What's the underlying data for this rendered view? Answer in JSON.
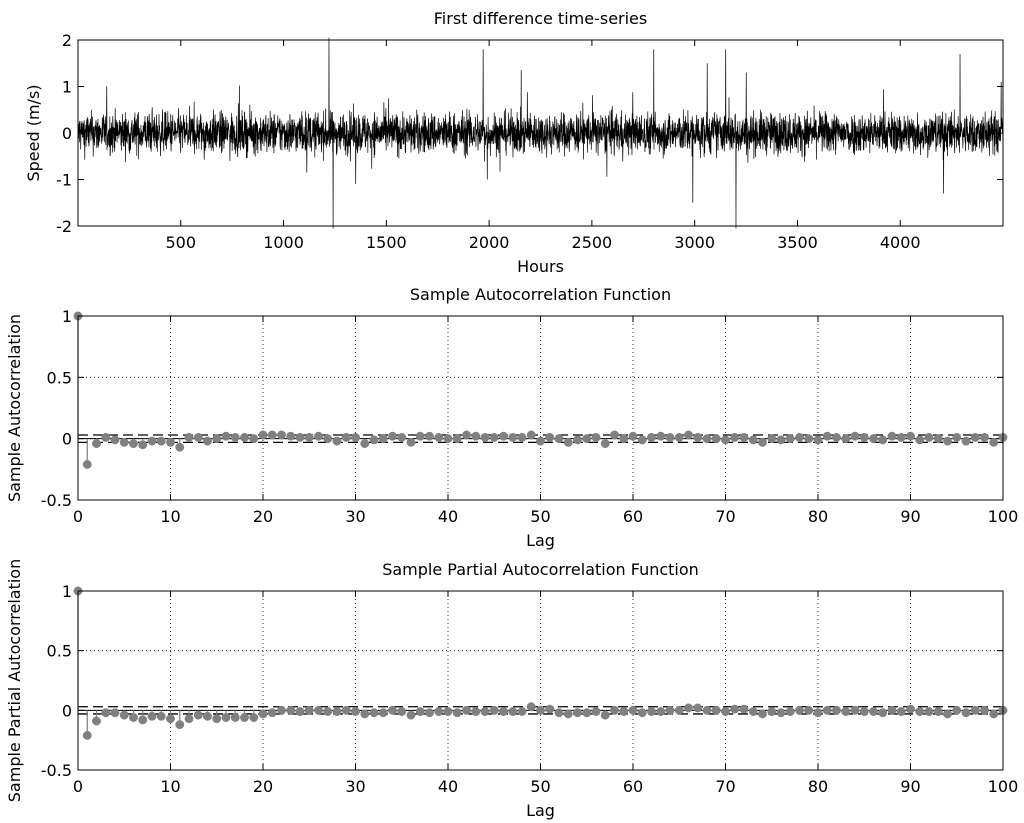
{
  "chart_data": [
    {
      "type": "line",
      "title": "First difference time-series",
      "xlabel": "Hours",
      "ylabel": "Speed (m/s)",
      "xlim": [
        0,
        4500
      ],
      "ylim": [
        -2,
        2
      ],
      "xticks": [
        500,
        1000,
        1500,
        2000,
        2500,
        3000,
        3500,
        4000
      ],
      "yticks": [
        -2,
        -1,
        0,
        1,
        2
      ],
      "series": [
        {
          "color": "#000000",
          "n_points": 4500,
          "typical_amplitude": 0.4,
          "spikes": [
            {
              "x": 1220,
              "y": 2.1
            },
            {
              "x": 1240,
              "y": -2.2
            },
            {
              "x": 1350,
              "y": -1.1
            },
            {
              "x": 1970,
              "y": 1.8
            },
            {
              "x": 1990,
              "y": -1.0
            },
            {
              "x": 2800,
              "y": 1.8
            },
            {
              "x": 2990,
              "y": -1.5
            },
            {
              "x": 3060,
              "y": 1.5
            },
            {
              "x": 3150,
              "y": 1.8
            },
            {
              "x": 3200,
              "y": -2.2
            },
            {
              "x": 3250,
              "y": 1.3
            },
            {
              "x": 4210,
              "y": -1.3
            },
            {
              "x": 4290,
              "y": 1.7
            },
            {
              "x": 4490,
              "y": 1.1
            }
          ]
        }
      ]
    },
    {
      "type": "scatter",
      "title": "Sample Autocorrelation Function",
      "xlabel": "Lag",
      "ylabel": "Sample Autocorrelation",
      "xlim": [
        0,
        100
      ],
      "ylim": [
        -0.5,
        1
      ],
      "xticks": [
        0,
        10,
        20,
        30,
        40,
        50,
        60,
        70,
        80,
        90,
        100
      ],
      "yticks": [
        -0.5,
        0,
        0.5,
        1
      ],
      "grid": true,
      "confidence_bounds": [
        -0.03,
        0.03
      ],
      "series": [
        {
          "color": "#808080",
          "x": [
            0,
            1,
            2,
            3,
            4,
            5,
            6,
            7,
            8,
            9,
            10,
            11,
            12,
            13,
            14,
            15,
            16,
            17,
            18,
            19,
            20,
            21,
            22,
            23,
            24,
            25,
            26,
            27,
            28,
            29,
            30,
            31,
            32,
            33,
            34,
            35,
            36,
            37,
            38,
            39,
            40,
            41,
            42,
            43,
            44,
            45,
            46,
            47,
            48,
            49,
            50,
            51,
            52,
            53,
            54,
            55,
            56,
            57,
            58,
            59,
            60,
            61,
            62,
            63,
            64,
            65,
            66,
            67,
            68,
            69,
            70,
            71,
            72,
            73,
            74,
            75,
            76,
            77,
            78,
            79,
            80,
            81,
            82,
            83,
            84,
            85,
            86,
            87,
            88,
            89,
            90,
            91,
            92,
            93,
            94,
            95,
            96,
            97,
            98,
            99,
            100
          ],
          "values": [
            1,
            -0.21,
            -0.04,
            0.01,
            -0.01,
            -0.03,
            -0.04,
            -0.05,
            -0.02,
            -0.02,
            -0.03,
            -0.07,
            0.01,
            0.01,
            -0.02,
            0.0,
            0.02,
            0.01,
            0.01,
            0.0,
            0.03,
            0.03,
            0.03,
            0.02,
            0.01,
            0.01,
            0.02,
            0.0,
            -0.02,
            0.01,
            0.01,
            -0.04,
            -0.01,
            0.0,
            0.02,
            0.01,
            -0.03,
            0.02,
            0.02,
            0.01,
            0.0,
            0.0,
            0.03,
            0.02,
            0.01,
            0.01,
            0.02,
            0.01,
            0.01,
            0.03,
            -0.02,
            0.01,
            0.0,
            -0.03,
            -0.01,
            0.0,
            0.01,
            -0.04,
            0.03,
            0.0,
            0.02,
            -0.01,
            0.01,
            0.02,
            0.01,
            0.01,
            0.03,
            0.01,
            0.0,
            0.0,
            -0.01,
            0.01,
            0.01,
            -0.01,
            -0.03,
            0.0,
            -0.01,
            0.0,
            0.01,
            0.0,
            -0.01,
            0.02,
            0.01,
            0.0,
            0.02,
            0.01,
            0.0,
            -0.01,
            0.02,
            0.01,
            0.02,
            -0.01,
            0.01,
            0.0,
            -0.02,
            0.01,
            -0.02,
            0.01,
            0.01,
            -0.03,
            0.01
          ]
        }
      ]
    },
    {
      "type": "scatter",
      "title": "Sample Partial Autocorrelation Function",
      "xlabel": "Lag",
      "ylabel": "Sample Partial Autocorrelation",
      "xlim": [
        0,
        100
      ],
      "ylim": [
        -0.5,
        1
      ],
      "xticks": [
        0,
        10,
        20,
        30,
        40,
        50,
        60,
        70,
        80,
        90,
        100
      ],
      "yticks": [
        -0.5,
        0,
        0.5,
        1
      ],
      "grid": true,
      "confidence_bounds": [
        -0.03,
        0.03
      ],
      "series": [
        {
          "color": "#808080",
          "x": [
            0,
            1,
            2,
            3,
            4,
            5,
            6,
            7,
            8,
            9,
            10,
            11,
            12,
            13,
            14,
            15,
            16,
            17,
            18,
            19,
            20,
            21,
            22,
            23,
            24,
            25,
            26,
            27,
            28,
            29,
            30,
            31,
            32,
            33,
            34,
            35,
            36,
            37,
            38,
            39,
            40,
            41,
            42,
            43,
            44,
            45,
            46,
            47,
            48,
            49,
            50,
            51,
            52,
            53,
            54,
            55,
            56,
            57,
            58,
            59,
            60,
            61,
            62,
            63,
            64,
            65,
            66,
            67,
            68,
            69,
            70,
            71,
            72,
            73,
            74,
            75,
            76,
            77,
            78,
            79,
            80,
            81,
            82,
            83,
            84,
            85,
            86,
            87,
            88,
            89,
            90,
            91,
            92,
            93,
            94,
            95,
            96,
            97,
            98,
            99,
            100
          ],
          "values": [
            1,
            -0.21,
            -0.09,
            -0.02,
            -0.02,
            -0.04,
            -0.06,
            -0.08,
            -0.05,
            -0.05,
            -0.07,
            -0.12,
            -0.07,
            -0.04,
            -0.05,
            -0.07,
            -0.06,
            -0.06,
            -0.06,
            -0.06,
            -0.03,
            -0.02,
            0.0,
            0.0,
            -0.01,
            0.0,
            0.0,
            -0.01,
            -0.01,
            0.0,
            -0.01,
            -0.03,
            -0.02,
            -0.02,
            0.0,
            -0.01,
            -0.04,
            -0.01,
            -0.02,
            -0.01,
            -0.01,
            -0.02,
            0.0,
            -0.01,
            -0.01,
            0.0,
            -0.01,
            -0.01,
            -0.01,
            0.03,
            0.0,
            0.01,
            -0.02,
            -0.03,
            -0.02,
            -0.02,
            -0.01,
            -0.04,
            0.0,
            -0.01,
            0.0,
            -0.02,
            -0.01,
            -0.01,
            0.0,
            0.0,
            0.02,
            0.02,
            0.0,
            0.0,
            -0.01,
            0.01,
            0.01,
            -0.01,
            -0.03,
            -0.01,
            -0.02,
            -0.01,
            0.0,
            0.0,
            -0.02,
            0.0,
            0.0,
            -0.01,
            0.0,
            -0.01,
            -0.01,
            -0.02,
            0.0,
            -0.01,
            0.01,
            -0.01,
            -0.01,
            -0.01,
            -0.03,
            0.0,
            -0.02,
            0.0,
            0.0,
            -0.03,
            0.0
          ]
        }
      ]
    }
  ]
}
